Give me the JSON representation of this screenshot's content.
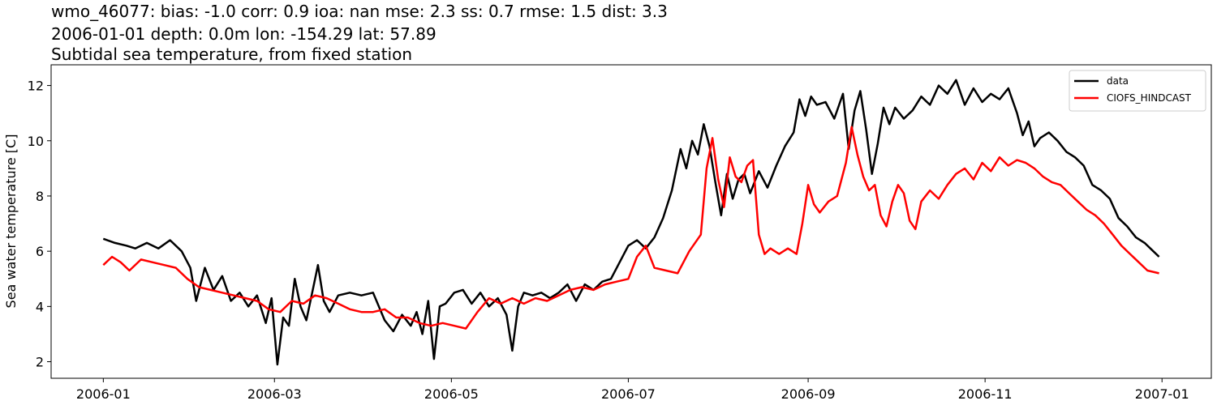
{
  "title": {
    "line1": "wmo_46077: bias: -1.0  corr: 0.9  ioa: nan  mse: 2.3  ss: 0.7  rmse: 1.5  dist: 3.3",
    "line2": "2006-01-01 depth: 0.0m lon: -154.29 lat: 57.89",
    "line3": "Subtidal sea temperature, from fixed station"
  },
  "chart_data": {
    "type": "line",
    "ylabel": "Sea water temperature [C]",
    "xlim": [
      "2005-12-14",
      "2007-01-18"
    ],
    "ylim": [
      1.4,
      12.75
    ],
    "x_ticks": [
      "2006-01",
      "2006-03",
      "2006-05",
      "2006-07",
      "2006-09",
      "2006-11",
      "2007-01"
    ],
    "y_ticks": [
      2,
      4,
      6,
      8,
      10,
      12
    ],
    "grid": false,
    "legend_position": "top-right",
    "series": [
      {
        "name": "data",
        "color": "#000000",
        "points": [
          [
            "2006-01-01",
            6.45
          ],
          [
            "2006-01-05",
            6.3
          ],
          [
            "2006-01-09",
            6.2
          ],
          [
            "2006-01-12",
            6.1
          ],
          [
            "2006-01-16",
            6.3
          ],
          [
            "2006-01-20",
            6.1
          ],
          [
            "2006-01-24",
            6.4
          ],
          [
            "2006-01-28",
            6.0
          ],
          [
            "2006-01-31",
            5.4
          ],
          [
            "2006-02-02",
            4.2
          ],
          [
            "2006-02-05",
            5.4
          ],
          [
            "2006-02-08",
            4.6
          ],
          [
            "2006-02-11",
            5.1
          ],
          [
            "2006-02-14",
            4.2
          ],
          [
            "2006-02-17",
            4.5
          ],
          [
            "2006-02-20",
            4.0
          ],
          [
            "2006-02-23",
            4.4
          ],
          [
            "2006-02-26",
            3.4
          ],
          [
            "2006-02-28",
            4.3
          ],
          [
            "2006-03-02",
            1.9
          ],
          [
            "2006-03-04",
            3.6
          ],
          [
            "2006-03-06",
            3.3
          ],
          [
            "2006-03-08",
            5.0
          ],
          [
            "2006-03-10",
            4.0
          ],
          [
            "2006-03-12",
            3.5
          ],
          [
            "2006-03-14",
            4.5
          ],
          [
            "2006-03-16",
            5.5
          ],
          [
            "2006-03-18",
            4.2
          ],
          [
            "2006-03-20",
            3.8
          ],
          [
            "2006-03-23",
            4.4
          ],
          [
            "2006-03-27",
            4.5
          ],
          [
            "2006-03-31",
            4.4
          ],
          [
            "2006-04-04",
            4.5
          ],
          [
            "2006-04-08",
            3.5
          ],
          [
            "2006-04-11",
            3.1
          ],
          [
            "2006-04-14",
            3.7
          ],
          [
            "2006-04-17",
            3.3
          ],
          [
            "2006-04-19",
            3.8
          ],
          [
            "2006-04-21",
            3.0
          ],
          [
            "2006-04-23",
            4.2
          ],
          [
            "2006-04-25",
            2.1
          ],
          [
            "2006-04-27",
            4.0
          ],
          [
            "2006-04-29",
            4.1
          ],
          [
            "2006-05-02",
            4.5
          ],
          [
            "2006-05-05",
            4.6
          ],
          [
            "2006-05-08",
            4.1
          ],
          [
            "2006-05-11",
            4.5
          ],
          [
            "2006-05-14",
            4.0
          ],
          [
            "2006-05-17",
            4.3
          ],
          [
            "2006-05-20",
            3.7
          ],
          [
            "2006-05-22",
            2.4
          ],
          [
            "2006-05-24",
            4.0
          ],
          [
            "2006-05-26",
            4.5
          ],
          [
            "2006-05-29",
            4.4
          ],
          [
            "2006-06-01",
            4.5
          ],
          [
            "2006-06-04",
            4.3
          ],
          [
            "2006-06-07",
            4.5
          ],
          [
            "2006-06-10",
            4.8
          ],
          [
            "2006-06-13",
            4.2
          ],
          [
            "2006-06-16",
            4.8
          ],
          [
            "2006-06-19",
            4.6
          ],
          [
            "2006-06-22",
            4.9
          ],
          [
            "2006-06-25",
            5.0
          ],
          [
            "2006-06-28",
            5.6
          ],
          [
            "2006-07-01",
            6.2
          ],
          [
            "2006-07-04",
            6.4
          ],
          [
            "2006-07-07",
            6.1
          ],
          [
            "2006-07-10",
            6.5
          ],
          [
            "2006-07-13",
            7.2
          ],
          [
            "2006-07-16",
            8.2
          ],
          [
            "2006-07-19",
            9.7
          ],
          [
            "2006-07-21",
            9.0
          ],
          [
            "2006-07-23",
            10.0
          ],
          [
            "2006-07-25",
            9.5
          ],
          [
            "2006-07-27",
            10.6
          ],
          [
            "2006-07-29",
            9.8
          ],
          [
            "2006-07-31",
            8.5
          ],
          [
            "2006-08-02",
            7.3
          ],
          [
            "2006-08-04",
            8.8
          ],
          [
            "2006-08-06",
            7.9
          ],
          [
            "2006-08-08",
            8.6
          ],
          [
            "2006-08-10",
            8.8
          ],
          [
            "2006-08-12",
            8.1
          ],
          [
            "2006-08-15",
            8.9
          ],
          [
            "2006-08-18",
            8.3
          ],
          [
            "2006-08-21",
            9.1
          ],
          [
            "2006-08-24",
            9.8
          ],
          [
            "2006-08-27",
            10.3
          ],
          [
            "2006-08-29",
            11.5
          ],
          [
            "2006-08-31",
            10.9
          ],
          [
            "2006-09-02",
            11.6
          ],
          [
            "2006-09-04",
            11.3
          ],
          [
            "2006-09-07",
            11.4
          ],
          [
            "2006-09-10",
            10.8
          ],
          [
            "2006-09-13",
            11.7
          ],
          [
            "2006-09-15",
            9.7
          ],
          [
            "2006-09-17",
            11.1
          ],
          [
            "2006-09-19",
            11.8
          ],
          [
            "2006-09-21",
            10.4
          ],
          [
            "2006-09-23",
            8.8
          ],
          [
            "2006-09-25",
            9.9
          ],
          [
            "2006-09-27",
            11.2
          ],
          [
            "2006-09-29",
            10.6
          ],
          [
            "2006-10-01",
            11.2
          ],
          [
            "2006-10-04",
            10.8
          ],
          [
            "2006-10-07",
            11.1
          ],
          [
            "2006-10-10",
            11.6
          ],
          [
            "2006-10-13",
            11.3
          ],
          [
            "2006-10-16",
            12.0
          ],
          [
            "2006-10-19",
            11.7
          ],
          [
            "2006-10-22",
            12.2
          ],
          [
            "2006-10-25",
            11.3
          ],
          [
            "2006-10-28",
            11.9
          ],
          [
            "2006-10-31",
            11.4
          ],
          [
            "2006-11-03",
            11.7
          ],
          [
            "2006-11-06",
            11.5
          ],
          [
            "2006-11-09",
            11.9
          ],
          [
            "2006-11-12",
            11.0
          ],
          [
            "2006-11-14",
            10.2
          ],
          [
            "2006-11-16",
            10.7
          ],
          [
            "2006-11-18",
            9.8
          ],
          [
            "2006-11-20",
            10.1
          ],
          [
            "2006-11-23",
            10.3
          ],
          [
            "2006-11-26",
            10.0
          ],
          [
            "2006-11-29",
            9.6
          ],
          [
            "2006-12-02",
            9.4
          ],
          [
            "2006-12-05",
            9.1
          ],
          [
            "2006-12-08",
            8.4
          ],
          [
            "2006-12-11",
            8.2
          ],
          [
            "2006-12-14",
            7.9
          ],
          [
            "2006-12-17",
            7.2
          ],
          [
            "2006-12-20",
            6.9
          ],
          [
            "2006-12-23",
            6.5
          ],
          [
            "2006-12-26",
            6.3
          ],
          [
            "2006-12-29",
            6.0
          ],
          [
            "2006-12-31",
            5.8
          ]
        ]
      },
      {
        "name": "CIOFS_HINDCAST",
        "color": "#ff0000",
        "points": [
          [
            "2006-01-01",
            5.5
          ],
          [
            "2006-01-04",
            5.8
          ],
          [
            "2006-01-07",
            5.6
          ],
          [
            "2006-01-10",
            5.3
          ],
          [
            "2006-01-14",
            5.7
          ],
          [
            "2006-01-18",
            5.6
          ],
          [
            "2006-01-22",
            5.5
          ],
          [
            "2006-01-26",
            5.4
          ],
          [
            "2006-01-30",
            5.0
          ],
          [
            "2006-02-03",
            4.7
          ],
          [
            "2006-02-07",
            4.6
          ],
          [
            "2006-02-11",
            4.5
          ],
          [
            "2006-02-15",
            4.4
          ],
          [
            "2006-02-19",
            4.3
          ],
          [
            "2006-02-23",
            4.2
          ],
          [
            "2006-02-27",
            3.9
          ],
          [
            "2006-03-03",
            3.8
          ],
          [
            "2006-03-07",
            4.2
          ],
          [
            "2006-03-11",
            4.1
          ],
          [
            "2006-03-15",
            4.4
          ],
          [
            "2006-03-19",
            4.3
          ],
          [
            "2006-03-23",
            4.1
          ],
          [
            "2006-03-27",
            3.9
          ],
          [
            "2006-03-31",
            3.8
          ],
          [
            "2006-04-04",
            3.8
          ],
          [
            "2006-04-08",
            3.9
          ],
          [
            "2006-04-12",
            3.6
          ],
          [
            "2006-04-16",
            3.6
          ],
          [
            "2006-04-20",
            3.4
          ],
          [
            "2006-04-24",
            3.3
          ],
          [
            "2006-04-28",
            3.4
          ],
          [
            "2006-05-02",
            3.3
          ],
          [
            "2006-05-06",
            3.2
          ],
          [
            "2006-05-10",
            3.8
          ],
          [
            "2006-05-14",
            4.3
          ],
          [
            "2006-05-18",
            4.1
          ],
          [
            "2006-05-22",
            4.3
          ],
          [
            "2006-05-26",
            4.1
          ],
          [
            "2006-05-30",
            4.3
          ],
          [
            "2006-06-03",
            4.2
          ],
          [
            "2006-06-07",
            4.4
          ],
          [
            "2006-06-11",
            4.6
          ],
          [
            "2006-06-15",
            4.7
          ],
          [
            "2006-06-19",
            4.6
          ],
          [
            "2006-06-23",
            4.8
          ],
          [
            "2006-06-27",
            4.9
          ],
          [
            "2006-07-01",
            5.0
          ],
          [
            "2006-07-04",
            5.8
          ],
          [
            "2006-07-07",
            6.2
          ],
          [
            "2006-07-10",
            5.4
          ],
          [
            "2006-07-14",
            5.3
          ],
          [
            "2006-07-18",
            5.2
          ],
          [
            "2006-07-22",
            6.0
          ],
          [
            "2006-07-26",
            6.6
          ],
          [
            "2006-07-28",
            9.0
          ],
          [
            "2006-07-30",
            10.1
          ],
          [
            "2006-08-01",
            8.6
          ],
          [
            "2006-08-03",
            7.6
          ],
          [
            "2006-08-05",
            9.4
          ],
          [
            "2006-08-07",
            8.7
          ],
          [
            "2006-08-09",
            8.5
          ],
          [
            "2006-08-11",
            9.1
          ],
          [
            "2006-08-13",
            9.3
          ],
          [
            "2006-08-15",
            6.6
          ],
          [
            "2006-08-17",
            5.9
          ],
          [
            "2006-08-19",
            6.1
          ],
          [
            "2006-08-22",
            5.9
          ],
          [
            "2006-08-25",
            6.1
          ],
          [
            "2006-08-28",
            5.9
          ],
          [
            "2006-08-30",
            7.0
          ],
          [
            "2006-09-01",
            8.4
          ],
          [
            "2006-09-03",
            7.7
          ],
          [
            "2006-09-05",
            7.4
          ],
          [
            "2006-09-08",
            7.8
          ],
          [
            "2006-09-11",
            8.0
          ],
          [
            "2006-09-14",
            9.2
          ],
          [
            "2006-09-16",
            10.5
          ],
          [
            "2006-09-18",
            9.5
          ],
          [
            "2006-09-20",
            8.7
          ],
          [
            "2006-09-22",
            8.2
          ],
          [
            "2006-09-24",
            8.4
          ],
          [
            "2006-09-26",
            7.3
          ],
          [
            "2006-09-28",
            6.9
          ],
          [
            "2006-09-30",
            7.8
          ],
          [
            "2006-10-02",
            8.4
          ],
          [
            "2006-10-04",
            8.1
          ],
          [
            "2006-10-06",
            7.1
          ],
          [
            "2006-10-08",
            6.8
          ],
          [
            "2006-10-10",
            7.8
          ],
          [
            "2006-10-13",
            8.2
          ],
          [
            "2006-10-16",
            7.9
          ],
          [
            "2006-10-19",
            8.4
          ],
          [
            "2006-10-22",
            8.8
          ],
          [
            "2006-10-25",
            9.0
          ],
          [
            "2006-10-28",
            8.6
          ],
          [
            "2006-10-31",
            9.2
          ],
          [
            "2006-11-03",
            8.9
          ],
          [
            "2006-11-06",
            9.4
          ],
          [
            "2006-11-09",
            9.1
          ],
          [
            "2006-11-12",
            9.3
          ],
          [
            "2006-11-15",
            9.2
          ],
          [
            "2006-11-18",
            9.0
          ],
          [
            "2006-11-21",
            8.7
          ],
          [
            "2006-11-24",
            8.5
          ],
          [
            "2006-11-27",
            8.4
          ],
          [
            "2006-11-30",
            8.1
          ],
          [
            "2006-12-03",
            7.8
          ],
          [
            "2006-12-06",
            7.5
          ],
          [
            "2006-12-09",
            7.3
          ],
          [
            "2006-12-12",
            7.0
          ],
          [
            "2006-12-15",
            6.6
          ],
          [
            "2006-12-18",
            6.2
          ],
          [
            "2006-12-21",
            5.9
          ],
          [
            "2006-12-24",
            5.6
          ],
          [
            "2006-12-27",
            5.3
          ],
          [
            "2006-12-31",
            5.2
          ]
        ]
      }
    ]
  }
}
